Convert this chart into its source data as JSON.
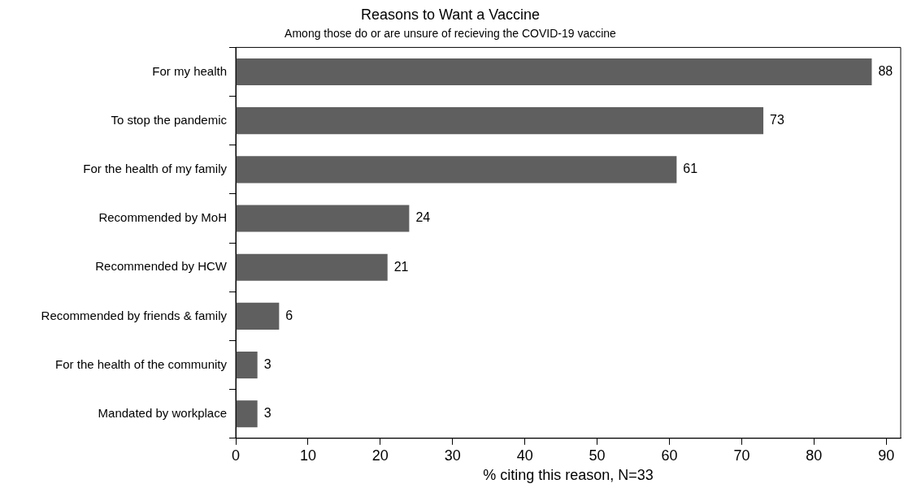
{
  "chart_data": {
    "type": "bar",
    "orientation": "horizontal",
    "title": "Reasons to Want a Vaccine",
    "subtitle": "Among those do or are unsure of recieving the COVID-19 vaccine",
    "xlabel": "% citing this reason, N=33",
    "categories": [
      "For my health",
      "To stop the pandemic",
      "For the health of my family",
      "Recommended by MoH",
      "Recommended by HCW",
      "Recommended by friends & family",
      "For the health of the community",
      "Mandated by workplace"
    ],
    "values": [
      88,
      73,
      61,
      24,
      21,
      6,
      3,
      3
    ],
    "color": "#5f5f5f",
    "data_labels": true,
    "xlim": [
      0,
      92
    ],
    "xticks": [
      0,
      10,
      20,
      30,
      40,
      50,
      60,
      70,
      80,
      90
    ],
    "grid": false,
    "legend": false
  }
}
